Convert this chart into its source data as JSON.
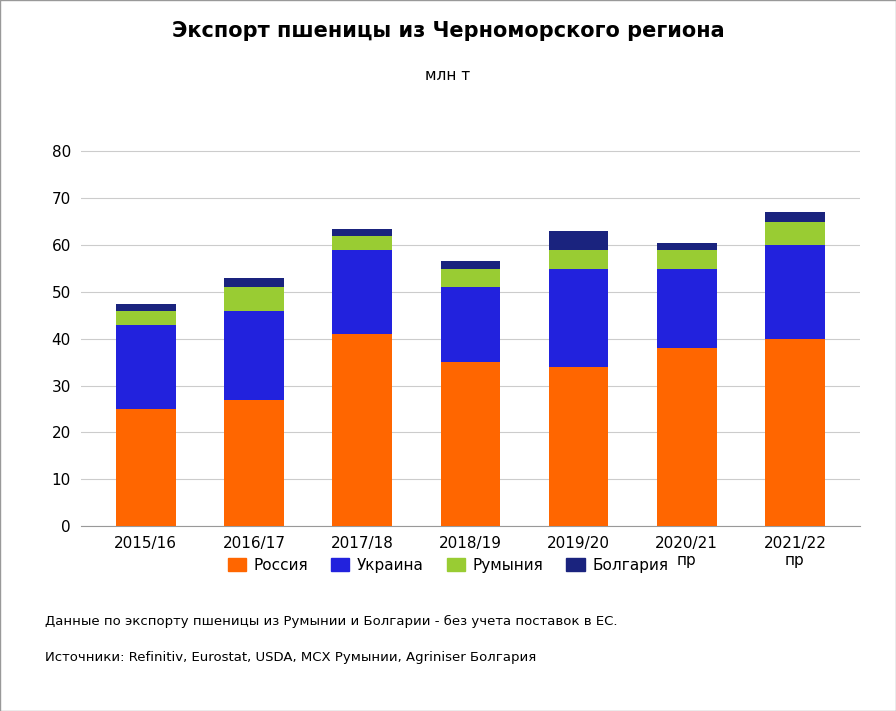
{
  "title": "Экспорт пшеницы из Черноморского региона",
  "subtitle": "млн т",
  "categories": [
    "2015/16",
    "2016/17",
    "2017/18",
    "2018/19",
    "2019/20",
    "2020/21\nпр",
    "2021/22\nпр"
  ],
  "russia": [
    25,
    27,
    41,
    35,
    34,
    38,
    40
  ],
  "ukraine": [
    18,
    19,
    18,
    16,
    21,
    17,
    20
  ],
  "romania": [
    3,
    5,
    3,
    4,
    4,
    4,
    5
  ],
  "bulgaria": [
    1.5,
    2,
    1.5,
    1.5,
    4,
    1.5,
    2
  ],
  "colors": {
    "russia": "#FF6600",
    "ukraine": "#2222DD",
    "romania": "#99CC33",
    "bulgaria": "#1A237E"
  },
  "legend_labels": [
    "Россия",
    "Украина",
    "Румыния",
    "Болгария"
  ],
  "ylim": [
    0,
    85
  ],
  "yticks": [
    0,
    10,
    20,
    30,
    40,
    50,
    60,
    70,
    80
  ],
  "footnote1": "Данные по экспорту пшеницы из Румынии и Болгарии - без учета поставок в ЕС.",
  "footnote2": "Источники: Refinitiv, Eurostat, USDA, МСХ Румынии, Agriniser Болгария",
  "background_color": "#FFFFFF",
  "grid_color": "#CCCCCC"
}
